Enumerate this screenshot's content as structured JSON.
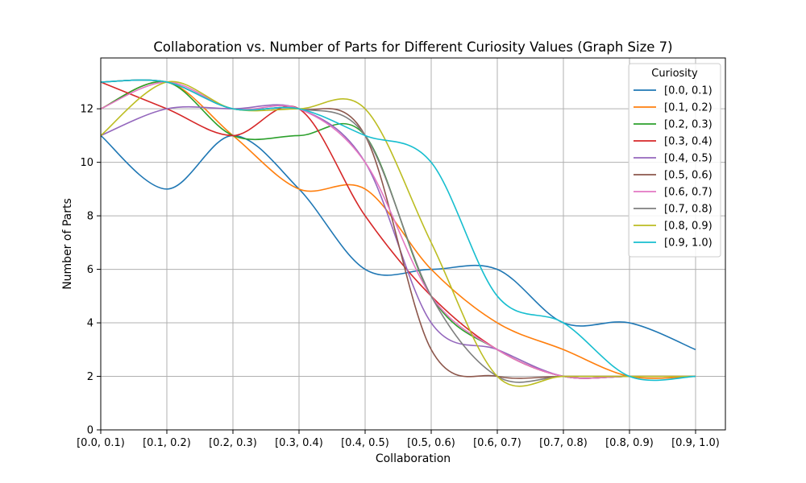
{
  "chart_data": {
    "type": "line",
    "title": "Collaboration vs. Number of Parts for Different Curiosity Values (Graph Size 7)",
    "xlabel": "Collaboration",
    "ylabel": "Number of Parts",
    "categories": [
      "[0.0, 0.1)",
      "[0.1, 0.2)",
      "[0.2, 0.3)",
      "[0.3, 0.4)",
      "[0.4, 0.5)",
      "[0.5, 0.6)",
      "[0.6, 0.7)",
      "[0.7, 0.8)",
      "[0.8, 0.9)",
      "[0.9, 1.0)"
    ],
    "ylim": [
      0,
      13.9
    ],
    "yticks": [
      0,
      2,
      4,
      6,
      8,
      10,
      12
    ],
    "grid": true,
    "legend": {
      "title": "Curiosity",
      "position": "top-right"
    },
    "series": [
      {
        "name": "[0.0, 0.1)",
        "color": "#1f77b4",
        "values": [
          11,
          9,
          11,
          9,
          6,
          6,
          6,
          4,
          4,
          3
        ]
      },
      {
        "name": "[0.1, 0.2)",
        "color": "#ff7f0e",
        "values": [
          12,
          13,
          11,
          9,
          9,
          6,
          4,
          3,
          2,
          2
        ]
      },
      {
        "name": "[0.2, 0.3)",
        "color": "#2ca02c",
        "values": [
          12,
          13,
          11,
          11,
          11,
          5,
          3,
          2,
          2,
          2
        ]
      },
      {
        "name": "[0.3, 0.4)",
        "color": "#d62728",
        "values": [
          13,
          12,
          11,
          12,
          8,
          5,
          3,
          2,
          2,
          2
        ]
      },
      {
        "name": "[0.4, 0.5)",
        "color": "#9467bd",
        "values": [
          11,
          12,
          12,
          12,
          10,
          4,
          3,
          2,
          2,
          2
        ]
      },
      {
        "name": "[0.5, 0.6)",
        "color": "#8c564b",
        "values": [
          13,
          13,
          12,
          12,
          11,
          3,
          2,
          2,
          2,
          2
        ]
      },
      {
        "name": "[0.6, 0.7)",
        "color": "#e377c2",
        "values": [
          12,
          13,
          12,
          12,
          10,
          5,
          3,
          2,
          2,
          2
        ]
      },
      {
        "name": "[0.7, 0.8)",
        "color": "#7f7f7f",
        "values": [
          13,
          13,
          12,
          12,
          11,
          5,
          2,
          2,
          2,
          2
        ]
      },
      {
        "name": "[0.8, 0.9)",
        "color": "#bcbd22",
        "values": [
          11,
          13,
          12,
          12,
          12,
          7,
          2,
          2,
          2,
          2
        ]
      },
      {
        "name": "[0.9, 1.0)",
        "color": "#17becf",
        "values": [
          13,
          13,
          12,
          12,
          11,
          10,
          5,
          4,
          2,
          2
        ]
      }
    ]
  }
}
